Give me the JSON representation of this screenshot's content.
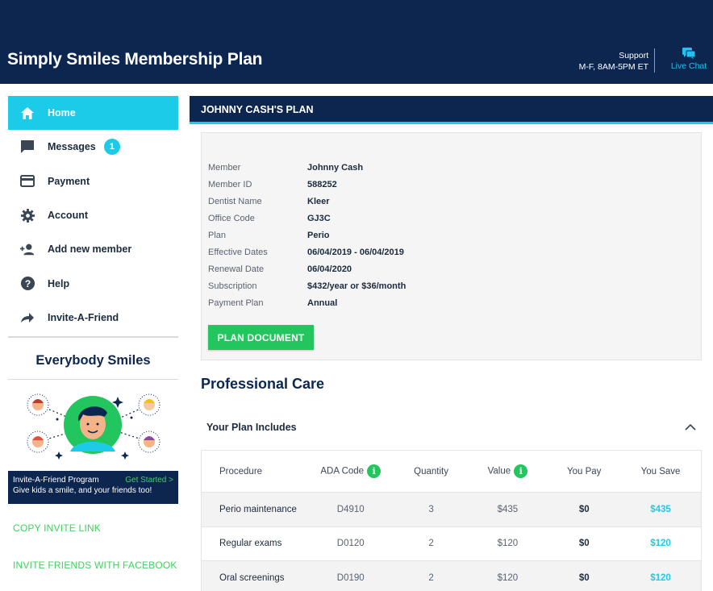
{
  "header": {
    "title": "Simply Smiles Membership Plan",
    "support_label": "Support",
    "support_hours": "M-F, 8AM-5PM ET",
    "live_chat": "Live Chat"
  },
  "sidebar": {
    "items": [
      {
        "label": "Home",
        "icon": "home-icon"
      },
      {
        "label": "Messages",
        "icon": "message-icon",
        "badge": "1"
      },
      {
        "label": "Payment",
        "icon": "credit-card-icon"
      },
      {
        "label": "Account",
        "icon": "gear-icon"
      },
      {
        "label": "Add new member",
        "icon": "add-person-icon"
      },
      {
        "label": "Help",
        "icon": "help-icon"
      },
      {
        "label": "Invite-A-Friend",
        "icon": "share-arrow-icon"
      }
    ],
    "promo_title": "Everybody Smiles",
    "invite_program": "Invite-A-Friend Program",
    "get_started": "Get Started >",
    "invite_tagline": "Give kids a smile, and your friends too!",
    "copy_link": "COPY INVITE LINK",
    "facebook_link": "INVITE FRIENDS WITH FACEBOOK"
  },
  "plan": {
    "header": "JOHNNY CASH'S PLAN",
    "details": [
      {
        "label": "Member",
        "value": "Johnny Cash"
      },
      {
        "label": "Member ID",
        "value": "588252"
      },
      {
        "label": "Dentist Name",
        "value": "Kleer"
      },
      {
        "label": "Office Code",
        "value": "GJ3C"
      },
      {
        "label": "Plan",
        "value": "Perio"
      },
      {
        "label": "Effective Dates",
        "value": "06/04/2019 - 06/04/2019"
      },
      {
        "label": "Renewal Date",
        "value": "06/04/2020"
      },
      {
        "label": "Subscription",
        "value": "$432/year or $36/month"
      },
      {
        "label": "Payment Plan",
        "value": "Annual"
      }
    ],
    "document_button": "PLAN DOCUMENT"
  },
  "care": {
    "title": "Professional Care",
    "includes_label": "Your Plan Includes",
    "columns": [
      "Procedure",
      "ADA Code",
      "Quantity",
      "Value",
      "You Pay",
      "You Save"
    ],
    "rows": [
      {
        "procedure": "Perio maintenance",
        "code": "D4910",
        "qty": "3",
        "value": "$435",
        "pay": "$0",
        "save": "$435"
      },
      {
        "procedure": "Regular exams",
        "code": "D0120",
        "qty": "2",
        "value": "$120",
        "pay": "$0",
        "save": "$120"
      },
      {
        "procedure": "Oral screenings",
        "code": "D0190",
        "qty": "2",
        "value": "$120",
        "pay": "$0",
        "save": "$120"
      }
    ]
  },
  "colors": {
    "navy": "#0d2650",
    "cyan": "#1ccbe8",
    "green": "#22c55e"
  }
}
